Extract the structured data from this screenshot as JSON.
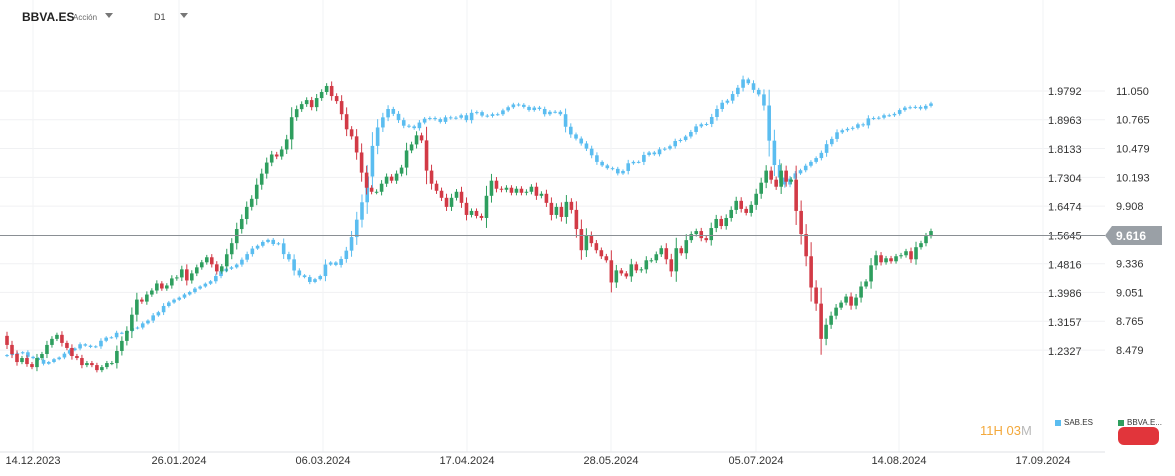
{
  "header": {
    "symbol": "BBVA.ES",
    "asset_type": "Acción",
    "timeframe": "D1"
  },
  "countdown": {
    "hours": "11",
    "h_label": "H",
    "minutes": "03",
    "m_label": "M"
  },
  "legend": [
    {
      "label": "SAB.ES",
      "color": "#5bbdf0"
    },
    {
      "label": "BBVA.E...",
      "color": "#2e9e5e"
    }
  ],
  "colors": {
    "up": "#2e9e5e",
    "down": "#d23a46",
    "secondary": "#5bbdf0",
    "last_price_bg": "#9aa0a6"
  },
  "chart_data": {
    "type": "candlestick",
    "x_ticks": [
      "14.12.2023",
      "26.01.2024",
      "06.03.2024",
      "17.04.2024",
      "28.05.2024",
      "05.07.2024",
      "14.08.2024",
      "17.09.2024"
    ],
    "y_right_ticks": [
      11.05,
      10.765,
      10.479,
      10.193,
      9.908,
      9.616,
      9.336,
      9.051,
      8.765,
      8.479
    ],
    "y_left_ticks": [
      1.9792,
      1.8963,
      1.8133,
      1.7304,
      1.6474,
      1.5645,
      1.4816,
      1.3986,
      1.3157,
      1.2327
    ],
    "last_price": 9.616,
    "series": [
      {
        "name": "BBVA.E...",
        "axis": "right",
        "close": [
          8.53,
          8.44,
          8.36,
          8.4,
          8.34,
          8.31,
          8.4,
          8.44,
          8.53,
          8.59,
          8.63,
          8.55,
          8.5,
          8.42,
          8.4,
          8.33,
          8.35,
          8.33,
          8.28,
          8.31,
          8.35,
          8.35,
          8.47,
          8.57,
          8.67,
          8.83,
          8.98,
          8.96,
          9.03,
          9.07,
          9.14,
          9.09,
          9.12,
          9.19,
          9.2,
          9.28,
          9.17,
          9.24,
          9.3,
          9.35,
          9.4,
          9.33,
          9.26,
          9.31,
          9.43,
          9.54,
          9.68,
          9.78,
          9.9,
          9.98,
          10.12,
          10.23,
          10.34,
          10.42,
          10.4,
          10.47,
          10.57,
          10.79,
          10.87,
          10.92,
          10.96,
          10.89,
          10.98,
          11.04,
          11.1,
          11.0,
          10.95,
          10.82,
          10.67,
          10.6,
          10.44,
          10.24,
          10.09,
          10.05,
          10.05,
          10.13,
          10.2,
          10.16,
          10.23,
          10.29,
          10.46,
          10.52,
          10.61,
          10.56,
          10.26,
          10.13,
          10.06,
          9.99,
          9.9,
          9.99,
          10.05,
          9.94,
          9.82,
          9.86,
          9.81,
          9.79,
          10.01,
          10.16,
          10.08,
          10.07,
          10.09,
          10.04,
          10.08,
          10.04,
          10.05,
          10.1,
          10.01,
          10.03,
          9.94,
          9.82,
          9.9,
          9.8,
          9.95,
          9.87,
          9.68,
          9.47,
          9.62,
          9.54,
          9.47,
          9.41,
          9.37,
          9.15,
          9.27,
          9.24,
          9.21,
          9.33,
          9.27,
          9.28,
          9.37,
          9.37,
          9.43,
          9.49,
          9.38,
          9.26,
          9.49,
          9.44,
          9.57,
          9.63,
          9.66,
          9.59,
          9.57,
          9.69,
          9.78,
          9.71,
          9.79,
          9.87,
          9.96,
          9.88,
          9.84,
          9.92,
          10.03,
          10.14,
          10.26,
          10.17,
          10.1,
          10.26,
          10.15,
          10.17,
          9.86,
          9.63,
          9.41,
          9.1,
          8.94,
          8.59,
          8.73,
          8.82,
          8.9,
          8.95,
          9.01,
          8.92,
          9.0,
          9.11,
          9.16,
          9.32,
          9.42,
          9.35,
          9.39,
          9.36,
          9.41,
          9.42,
          9.46,
          9.38,
          9.5,
          9.54,
          9.61,
          9.66
        ]
      },
      {
        "name": "SAB.ES",
        "axis": "left",
        "close": [
          1.221,
          1.224,
          1.226,
          1.229,
          1.216,
          1.212,
          1.207,
          1.196,
          1.201,
          1.209,
          1.214,
          1.225,
          1.235,
          1.24,
          1.252,
          1.248,
          1.244,
          1.246,
          1.262,
          1.271,
          1.272,
          1.285,
          1.284,
          1.29,
          1.298,
          1.3,
          1.312,
          1.32,
          1.335,
          1.344,
          1.362,
          1.372,
          1.38,
          1.386,
          1.395,
          1.402,
          1.412,
          1.418,
          1.426,
          1.433,
          1.448,
          1.462,
          1.469,
          1.473,
          1.481,
          1.495,
          1.511,
          1.527,
          1.535,
          1.546,
          1.552,
          1.54,
          1.542,
          1.511,
          1.496,
          1.464,
          1.45,
          1.445,
          1.431,
          1.439,
          1.448,
          1.481,
          1.487,
          1.48,
          1.497,
          1.521,
          1.56,
          1.61,
          1.66,
          1.734,
          1.822,
          1.875,
          1.904,
          1.928,
          1.914,
          1.896,
          1.88,
          1.878,
          1.873,
          1.889,
          1.9,
          1.902,
          1.899,
          1.891,
          1.904,
          1.902,
          1.903,
          1.91,
          1.896,
          1.917,
          1.919,
          1.909,
          1.908,
          1.913,
          1.913,
          1.924,
          1.933,
          1.941,
          1.94,
          1.934,
          1.925,
          1.932,
          1.928,
          1.913,
          1.92,
          1.92,
          1.913,
          1.877,
          1.855,
          1.843,
          1.829,
          1.814,
          1.795,
          1.776,
          1.766,
          1.758,
          1.756,
          1.743,
          1.75,
          1.772,
          1.776,
          1.776,
          1.796,
          1.803,
          1.798,
          1.812,
          1.814,
          1.821,
          1.836,
          1.839,
          1.849,
          1.862,
          1.878,
          1.884,
          1.885,
          1.905,
          1.928,
          1.946,
          1.952,
          1.971,
          1.989,
          2.013,
          2.002,
          1.983,
          1.97,
          1.938,
          1.837,
          1.767,
          1.731,
          1.711,
          1.728,
          1.743,
          1.752,
          1.765,
          1.776,
          1.787,
          1.802,
          1.827,
          1.842,
          1.861,
          1.867,
          1.871,
          1.874,
          1.884,
          1.881,
          1.901,
          1.902,
          1.903,
          1.91,
          1.91,
          1.914,
          1.925,
          1.932,
          1.933,
          1.934,
          1.929,
          1.937,
          1.944
        ]
      }
    ]
  }
}
